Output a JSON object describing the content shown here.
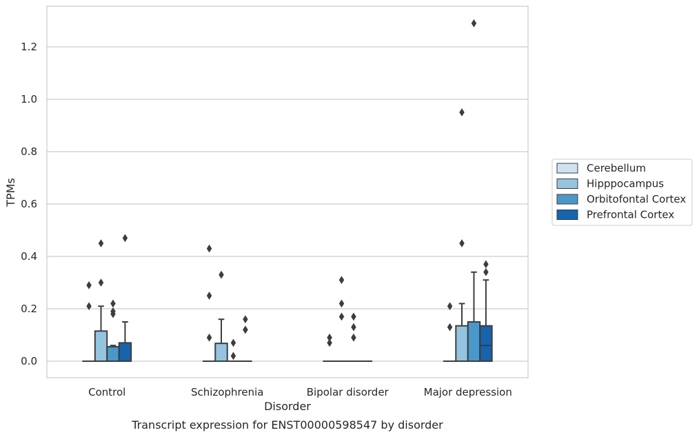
{
  "chart_data": {
    "type": "box",
    "xlabel": "Disorder",
    "ylabel": "TPMs",
    "caption": "Transcript expression for ENST00000598547 by disorder",
    "categories": [
      "Control",
      "Schizophrenia",
      "Bipolar disorder",
      "Major depression"
    ],
    "ylim": [
      -0.065,
      1.35
    ],
    "yticks": [
      0.0,
      0.2,
      0.4,
      0.6,
      0.8,
      1.0,
      1.2
    ],
    "ytick_labels": [
      "0.0",
      "0.2",
      "0.4",
      "0.6",
      "0.8",
      "1.0",
      "1.2"
    ],
    "grid": "horizontal",
    "legend_position": "right",
    "series": [
      {
        "name": "Cerebellum",
        "color": "#d0e1f2",
        "boxes": [
          {
            "q1": 0,
            "median": 0,
            "q3": 0,
            "whisker_low": 0,
            "whisker_high": 0,
            "outliers": [
              0.21,
              0.29
            ]
          },
          {
            "q1": 0,
            "median": 0,
            "q3": 0,
            "whisker_low": 0,
            "whisker_high": 0,
            "outliers": [
              0.09,
              0.25,
              0.43
            ]
          },
          {
            "q1": 0,
            "median": 0,
            "q3": 0,
            "whisker_low": 0,
            "whisker_high": 0,
            "outliers": [
              0.07,
              0.09
            ]
          },
          {
            "q1": 0,
            "median": 0,
            "q3": 0,
            "whisker_low": 0,
            "whisker_high": 0,
            "outliers": [
              0.13,
              0.21
            ]
          }
        ]
      },
      {
        "name": "Hipppocampus",
        "color": "#94c4df",
        "boxes": [
          {
            "q1": 0,
            "median": 0,
            "q3": 0.115,
            "whisker_low": 0,
            "whisker_high": 0.21,
            "outliers": [
              0.3,
              0.45
            ]
          },
          {
            "q1": 0,
            "median": 0,
            "q3": 0.068,
            "whisker_low": 0,
            "whisker_high": 0.16,
            "outliers": [
              0.33
            ]
          },
          {
            "q1": 0,
            "median": 0,
            "q3": 0,
            "whisker_low": 0,
            "whisker_high": 0,
            "outliers": [
              0.17,
              0.22,
              0.31
            ]
          },
          {
            "q1": 0,
            "median": 0,
            "q3": 0.135,
            "whisker_low": 0,
            "whisker_high": 0.22,
            "outliers": [
              0.45,
              0.95
            ]
          }
        ]
      },
      {
        "name": "Orbitofontal Cortex",
        "color": "#4a98c9",
        "boxes": [
          {
            "q1": 0,
            "median": 0,
            "q3": 0.055,
            "whisker_low": 0,
            "whisker_high": 0.06,
            "outliers": [
              0.18,
              0.19,
              0.22
            ]
          },
          {
            "q1": 0,
            "median": 0,
            "q3": 0,
            "whisker_low": 0,
            "whisker_high": 0,
            "outliers": [
              0.02,
              0.07
            ]
          },
          {
            "q1": 0,
            "median": 0,
            "q3": 0,
            "whisker_low": 0,
            "whisker_high": 0,
            "outliers": [
              0.09,
              0.13,
              0.17
            ]
          },
          {
            "q1": 0,
            "median": 0,
            "q3": 0.15,
            "whisker_low": 0,
            "whisker_high": 0.34,
            "outliers": [
              1.29
            ]
          }
        ]
      },
      {
        "name": "Prefrontal Cortex",
        "color": "#1764ab",
        "boxes": [
          {
            "q1": 0,
            "median": 0,
            "q3": 0.07,
            "whisker_low": 0,
            "whisker_high": 0.15,
            "outliers": [
              0.47
            ]
          },
          {
            "q1": 0,
            "median": 0,
            "q3": 0,
            "whisker_low": 0,
            "whisker_high": 0,
            "outliers": [
              0.12,
              0.12,
              0.16
            ]
          },
          {
            "q1": 0,
            "median": 0,
            "q3": 0,
            "whisker_low": 0,
            "whisker_high": 0,
            "outliers": []
          },
          {
            "q1": 0,
            "median": 0.06,
            "q3": 0.135,
            "whisker_low": 0,
            "whisker_high": 0.31,
            "outliers": [
              0.34,
              0.37
            ]
          }
        ]
      }
    ]
  }
}
